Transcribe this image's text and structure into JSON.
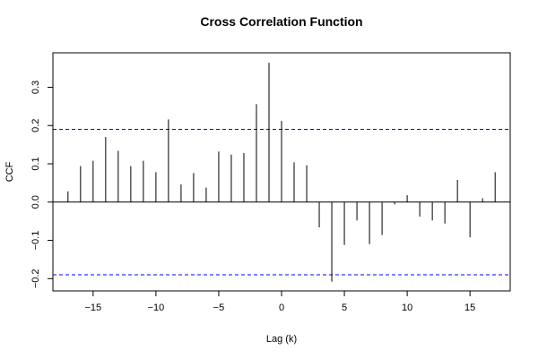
{
  "chart_data": {
    "type": "bar",
    "title": "Cross Correlation Function",
    "xlabel": "Lag (k)",
    "ylabel": "CCF",
    "xlim": [
      -18.2,
      18.2
    ],
    "ylim": [
      -0.232,
      0.39
    ],
    "xticks": [
      -15,
      -10,
      -5,
      0,
      5,
      10,
      15
    ],
    "xtick_labels": [
      "−15",
      "−10",
      "−5",
      "0",
      "5",
      "10",
      "15"
    ],
    "yticks": [
      -0.2,
      -0.1,
      0.0,
      0.1,
      0.2,
      0.3
    ],
    "ytick_labels": [
      "−0.2",
      "−0.1",
      "0.0",
      "0.1",
      "0.2",
      "0.3"
    ],
    "confidence_bound": 0.19,
    "lags": [
      -17,
      -16,
      -15,
      -14,
      -13,
      -12,
      -11,
      -10,
      -9,
      -8,
      -7,
      -6,
      -5,
      -4,
      -3,
      -2,
      -1,
      0,
      1,
      2,
      3,
      4,
      5,
      6,
      7,
      8,
      9,
      10,
      11,
      12,
      13,
      14,
      15,
      16,
      17
    ],
    "values": [
      0.028,
      0.094,
      0.108,
      0.17,
      0.134,
      0.094,
      0.108,
      0.078,
      0.216,
      0.046,
      0.076,
      0.038,
      0.132,
      0.124,
      0.128,
      0.256,
      0.364,
      0.212,
      0.104,
      0.096,
      -0.066,
      -0.208,
      -0.112,
      -0.048,
      -0.11,
      -0.086,
      -0.006,
      0.018,
      -0.038,
      -0.048,
      -0.056,
      0.058,
      -0.092,
      0.01,
      0.078
    ],
    "colors": {
      "bars": "#000000",
      "confidence": "#0000ff",
      "zero_line": "#000000",
      "frame": "#000000"
    },
    "grid": false
  }
}
